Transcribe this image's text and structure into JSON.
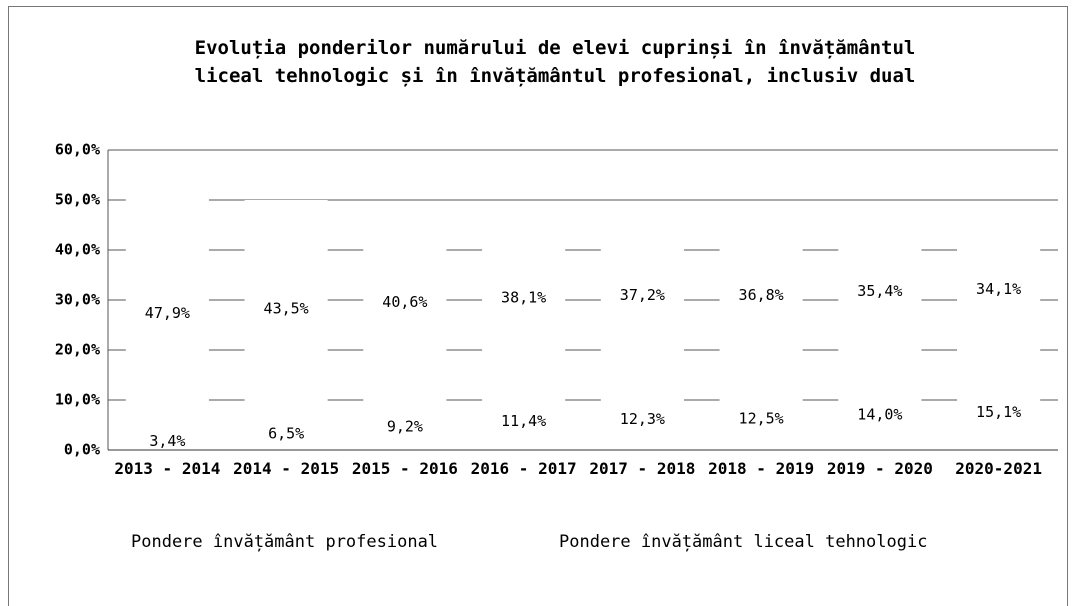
{
  "chart_data": {
    "type": "stacked_bar",
    "title": "Evoluția ponderilor numărului de elevi cuprinși în învățământul liceal tehnologic și în învățământul profesional, inclusiv dual",
    "categories": [
      "2013 - 2014",
      "2014 - 2015",
      "2015 - 2016",
      "2016 - 2017",
      "2017 - 2018",
      "2018 - 2019",
      "2019 - 2020",
      "2020-2021"
    ],
    "series": [
      {
        "name": "Pondere învățământ profesional",
        "color": "#ffffff",
        "values": [
          3.4,
          6.5,
          9.2,
          11.4,
          12.3,
          12.5,
          14.0,
          15.1
        ],
        "value_labels": [
          "3,4%",
          "6,5%",
          "9,2%",
          "11,4%",
          "12,3%",
          "12,5%",
          "14,0%",
          "15,1%"
        ]
      },
      {
        "name": "Pondere învățământ liceal tehnologic",
        "color": "#ffffff",
        "values": [
          47.9,
          43.5,
          40.6,
          38.1,
          37.2,
          36.8,
          35.4,
          34.1
        ],
        "value_labels": [
          "47,9%",
          "43,5%",
          "40,6%",
          "38,1%",
          "37,2%",
          "36,8%",
          "35,4%",
          "34,1%"
        ]
      }
    ],
    "ylim": [
      0,
      60
    ],
    "yticks": [
      {
        "value": 0,
        "label": "0,0%"
      },
      {
        "value": 10,
        "label": "10,0%"
      },
      {
        "value": 20,
        "label": "20,0%"
      },
      {
        "value": 30,
        "label": "30,0%"
      },
      {
        "value": 40,
        "label": "40,0%"
      },
      {
        "value": 50,
        "label": "50,0%"
      },
      {
        "value": 60,
        "label": "60,0%"
      }
    ],
    "grid": true
  }
}
